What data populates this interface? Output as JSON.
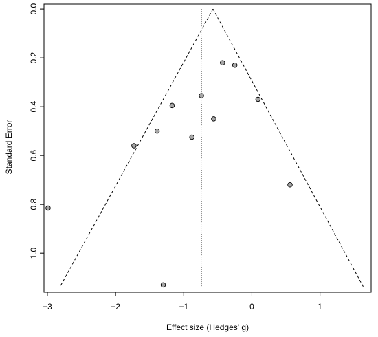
{
  "chart_data": {
    "type": "scatter",
    "subtype": "funnel",
    "xlabel": "Effect size (Hedges' g)",
    "ylabel": "Standard Error",
    "xlim": [
      -3.05,
      1.75
    ],
    "ylim": [
      1.16,
      -0.02
    ],
    "y_axis_inverted": true,
    "grid": false,
    "x_ticks": [
      -3,
      -2,
      -1,
      0,
      1
    ],
    "x_tick_labels": [
      "−3",
      "−2",
      "−1",
      "0",
      "1"
    ],
    "y_ticks": [
      0.0,
      0.2,
      0.4,
      0.6,
      0.8,
      1.0
    ],
    "y_tick_labels": [
      "0.0",
      "0.2",
      "0.4",
      "0.6",
      "0.8",
      "1.0"
    ],
    "summary_effect": -0.74,
    "funnel_apex": {
      "x": -0.57,
      "se": 0.0
    },
    "funnel_base_se": 1.14,
    "funnel_left_x": -2.82,
    "funnel_right_x": 1.64,
    "points": [
      {
        "x": -0.43,
        "y": 0.22
      },
      {
        "x": -0.25,
        "y": 0.23
      },
      {
        "x": -0.74,
        "y": 0.355
      },
      {
        "x": 0.09,
        "y": 0.37
      },
      {
        "x": -1.17,
        "y": 0.395
      },
      {
        "x": -0.56,
        "y": 0.45
      },
      {
        "x": -1.39,
        "y": 0.5
      },
      {
        "x": -0.88,
        "y": 0.525
      },
      {
        "x": -1.73,
        "y": 0.56
      },
      {
        "x": 0.56,
        "y": 0.72
      },
      {
        "x": -2.99,
        "y": 0.815
      },
      {
        "x": -1.3,
        "y": 1.13
      }
    ],
    "point_fill": "#a6a6a6",
    "point_stroke": "#000000"
  }
}
